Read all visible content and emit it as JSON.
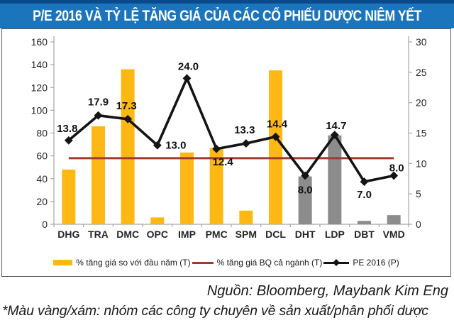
{
  "title": "P/E 2016 VÀ TỶ LỆ TĂNG GIÁ CỦA CÁC CỔ PHIẾU DƯỢC NIÊM YẾT",
  "footer": {
    "source": "Nguồn: Bloomberg, Maybank Kim Eng",
    "note": "*Màu vàng/xám: nhóm các công ty chuyên về sản xuất/phân phối dược"
  },
  "colors": {
    "title_bar": "#1B75BC",
    "title_bar_top": "#0A4A8A",
    "box_border": "#595959",
    "axis_line": "#A6A6A6",
    "bar_yellow": "#FDB813",
    "bar_gray": "#8C8C8C",
    "avg_line": "#9E3A2F",
    "pe_line": "#141414"
  },
  "chart_data": {
    "type": "combo bar+line",
    "title": "P/E 2016 VÀ TỶ LỆ TĂNG GIÁ CỦA CÁC CỔ PHIẾU DƯỢC NIÊM YẾT",
    "categories": [
      "DHG",
      "TRA",
      "DMC",
      "OPC",
      "IMP",
      "PMC",
      "SPM",
      "DCL",
      "DHT",
      "LDP",
      "DBT",
      "VMD"
    ],
    "left_axis": {
      "min": 0,
      "max": 160,
      "step": 20
    },
    "right_axis": {
      "min": 0,
      "max": 30,
      "step": 5
    },
    "grid": false,
    "legend_position": "bottom-center",
    "series": [
      {
        "name": "% tăng giá so với đầu năm (T)",
        "type": "bar",
        "axis": "left",
        "values": [
          48,
          86,
          136,
          6,
          63,
          67,
          12,
          135,
          42,
          78,
          3,
          8
        ],
        "bar_color_groups": [
          "yellow",
          "yellow",
          "yellow",
          "yellow",
          "yellow",
          "yellow",
          "yellow",
          "yellow",
          "gray",
          "gray",
          "gray",
          "gray"
        ]
      },
      {
        "name": "% tăng giá BQ cả ngành (T)",
        "type": "hline",
        "axis": "left",
        "value": 58
      },
      {
        "name": "PE 2016 (P)",
        "type": "line",
        "axis": "right",
        "values": [
          13.8,
          17.9,
          17.3,
          13.0,
          24.0,
          12.4,
          13.3,
          14.4,
          8.0,
          14.7,
          7.0,
          8.0
        ],
        "point_labels": [
          "13.8",
          "17.9",
          "17.3",
          "13.0",
          "24.0",
          "12.4",
          "13.3",
          "14.4",
          "8.0",
          "14.7",
          "7.0",
          "8.0"
        ],
        "label_offsets": [
          [
            -2,
            -12
          ],
          [
            0,
            -14
          ],
          [
            -2,
            -14
          ],
          [
            26,
            5
          ],
          [
            2,
            -12
          ],
          [
            9,
            23
          ],
          [
            -2,
            -14
          ],
          [
            2,
            -13
          ],
          [
            0,
            25
          ],
          [
            2,
            -8
          ],
          [
            0,
            23
          ],
          [
            4,
            -6
          ]
        ]
      }
    ]
  }
}
